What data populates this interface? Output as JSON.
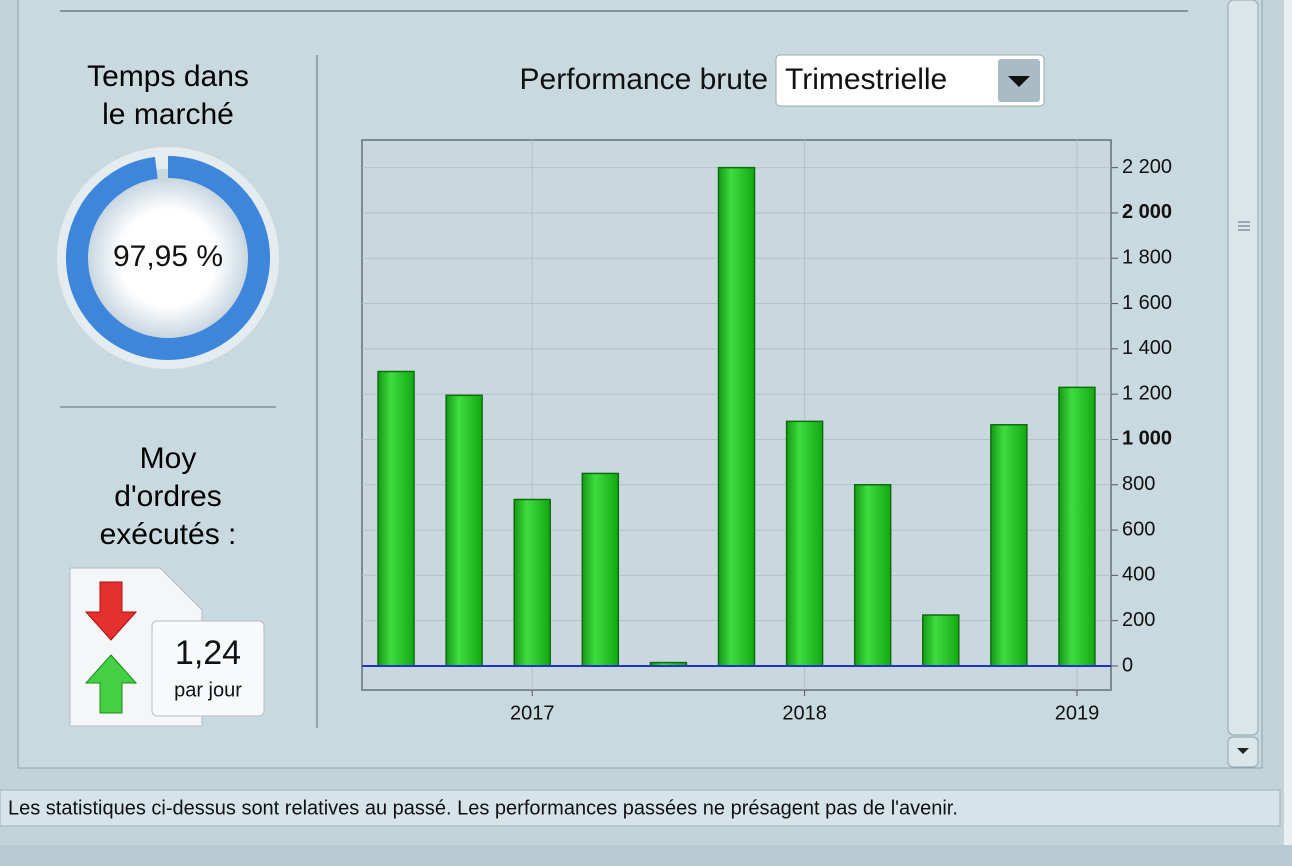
{
  "left": {
    "market_time": {
      "title": "Temps dans le marché",
      "value": 97.95,
      "value_label": "97,95 %"
    },
    "orders": {
      "title": "Moy d'ordres exécutés :",
      "value": "1,24",
      "unit": "par jour"
    }
  },
  "chart_data": {
    "type": "bar",
    "title": "Performance brute",
    "period": "Trimestrielle",
    "categories": [
      null,
      null,
      "2017",
      null,
      null,
      null,
      "2018",
      null,
      null,
      null,
      "2019"
    ],
    "values": [
      1300,
      1195,
      735,
      850,
      15,
      2200,
      1080,
      800,
      225,
      1065,
      1230
    ],
    "color": "#1fc41f",
    "ylim": [
      -106,
      2322
    ],
    "yticks": [
      0,
      200,
      400,
      600,
      800,
      {
        "value": 1000,
        "label": "1 000"
      },
      {
        "value": 1200,
        "label": "1 200"
      },
      {
        "value": 1400,
        "label": "1 400"
      },
      {
        "value": 1600,
        "label": "1 600"
      },
      {
        "value": 1800,
        "label": "1 800"
      },
      {
        "value": 2000,
        "label": "2 000"
      },
      {
        "value": 2200,
        "label": "2 200"
      }
    ],
    "grid": true
  },
  "footer": "Les statistiques ci-dessus sont relatives au passé. Les performances passées ne présagent pas de l'avenir."
}
